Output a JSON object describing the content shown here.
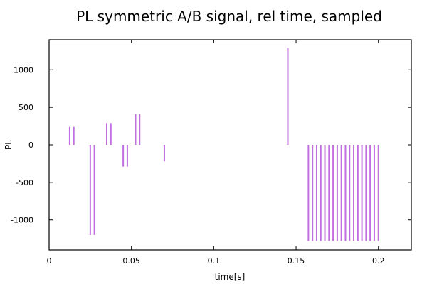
{
  "chart_data": {
    "type": "impulse",
    "title": "PL symmetric A/B signal, rel time, sampled",
    "xlabel": "time[s]",
    "ylabel": "PL",
    "xlim": [
      0,
      0.22
    ],
    "ylim": [
      -1400,
      1400
    ],
    "xticks": [
      0,
      0.05,
      0.1,
      0.15,
      0.2
    ],
    "xtick_labels": [
      "0",
      "0.05",
      "0.1",
      "0.15",
      "0.2"
    ],
    "yticks": [
      -1000,
      -500,
      0,
      500,
      1000
    ],
    "ytick_labels": [
      "-1000",
      "-500",
      "0",
      "500",
      "1000"
    ],
    "grid": false,
    "color": "#c06ee0",
    "series": [
      {
        "x": [
          0.0125,
          0.015,
          0.025,
          0.0275,
          0.035,
          0.0375,
          0.045,
          0.0475,
          0.0525,
          0.055,
          0.07,
          0.145,
          0.1575,
          0.16,
          0.1625,
          0.165,
          0.1675,
          0.17,
          0.1725,
          0.175,
          0.1775,
          0.18,
          0.1825,
          0.185,
          0.1875,
          0.19,
          0.1925,
          0.195,
          0.1975,
          0.2
        ],
        "y": [
          240,
          240,
          -1200,
          -1200,
          290,
          290,
          -290,
          -290,
          410,
          410,
          -220,
          1290,
          -1280,
          -1280,
          -1280,
          -1280,
          -1280,
          -1280,
          -1280,
          -1280,
          -1280,
          -1280,
          -1280,
          -1280,
          -1280,
          -1280,
          -1280,
          -1280,
          -1280,
          -1280
        ]
      }
    ]
  }
}
